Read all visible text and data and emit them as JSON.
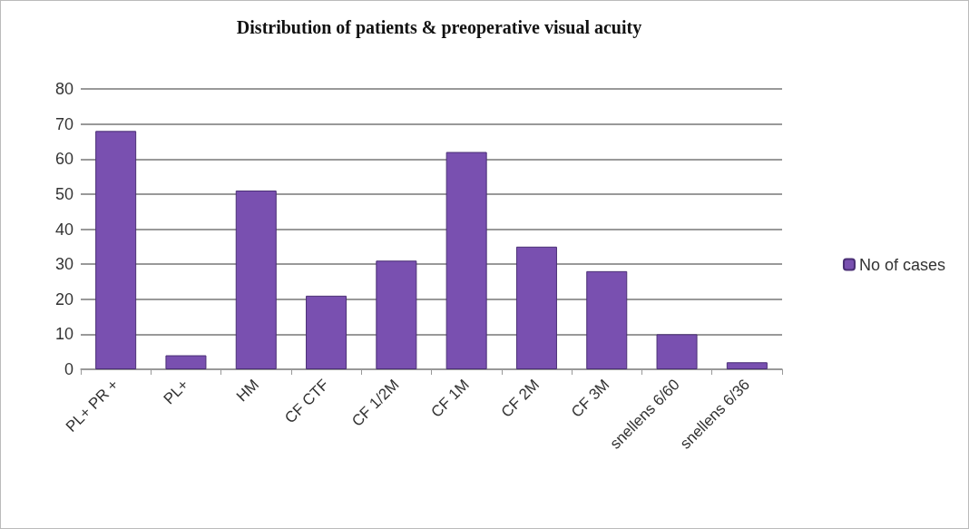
{
  "chart_data": {
    "type": "bar",
    "title": "Distribution of patients & preoperative visual acuity",
    "categories": [
      "PL+ PR +",
      "PL+",
      "HM",
      "CF CTF",
      "CF 1/2M",
      "CF 1M",
      "CF 2M",
      "CF 3M",
      "snellens 6/60",
      "snellens 6/36"
    ],
    "series": [
      {
        "name": "No of cases",
        "color": "#7950b0",
        "values": [
          68,
          4,
          51,
          21,
          31,
          62,
          35,
          28,
          10,
          2
        ]
      }
    ],
    "ylim": [
      0,
      80
    ],
    "yticks": [
      0,
      10,
      20,
      30,
      40,
      50,
      60,
      70,
      80
    ],
    "grid": "y",
    "legend": "right"
  }
}
